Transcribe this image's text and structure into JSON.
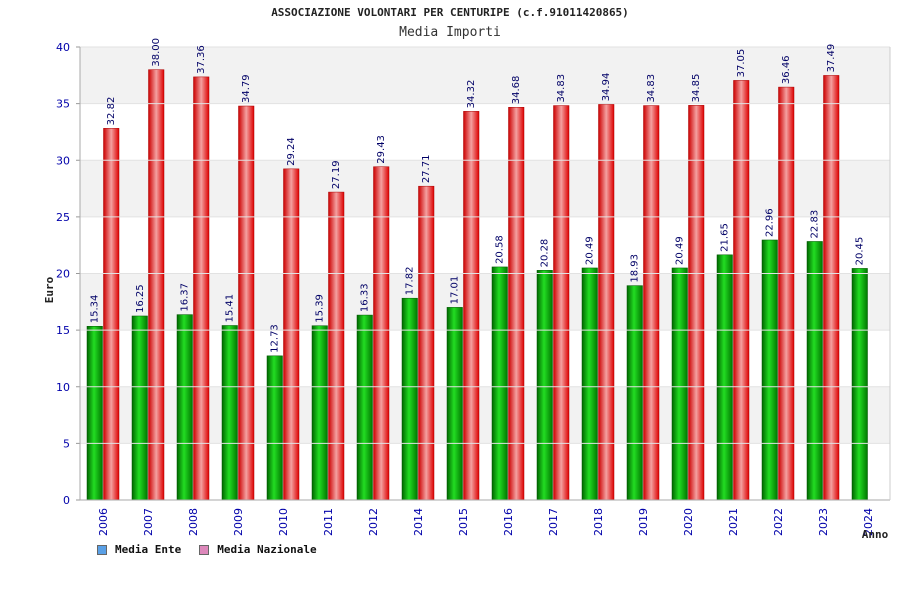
{
  "chart_data": {
    "type": "bar",
    "title": "ASSOCIAZIONE VOLONTARI PER CENTURIPE (c.f.91011420865)",
    "subtitle": "Media Importi",
    "xlabel": "Anno",
    "ylabel": "Euro",
    "ylim": [
      0,
      40
    ],
    "yticks": [
      0,
      5,
      10,
      15,
      20,
      25,
      30,
      35,
      40
    ],
    "grid": true,
    "legend_position": "bottom-left",
    "categories": [
      "2006",
      "2007",
      "2008",
      "2009",
      "2010",
      "2011",
      "2012",
      "2014",
      "2015",
      "2016",
      "2017",
      "2018",
      "2019",
      "2020",
      "2021",
      "2022",
      "2023",
      "2024"
    ],
    "series": [
      {
        "name": "Media Ente",
        "color": "#00aa00",
        "legend_color": "#5aa0e6",
        "values": [
          15.34,
          16.25,
          16.37,
          15.41,
          12.73,
          15.39,
          16.33,
          17.82,
          17.01,
          20.58,
          20.28,
          20.49,
          18.93,
          20.49,
          21.65,
          22.96,
          22.83,
          20.45
        ],
        "labels": [
          "15.34",
          "16.25",
          "16.37",
          "15.41",
          "12.73",
          "15.39",
          "16.33",
          "17.82",
          "17.01",
          "20.58",
          "20.28",
          "20.49",
          "18.93",
          "20.49",
          "21.65",
          "22.96",
          "22.83",
          "20.45"
        ]
      },
      {
        "name": "Media Nazionale",
        "color": "#ee1111",
        "legend_color": "#dd88bb",
        "values": [
          32.82,
          38.0,
          37.36,
          34.79,
          29.24,
          27.19,
          29.43,
          27.71,
          34.32,
          34.68,
          34.83,
          34.94,
          34.83,
          34.85,
          37.05,
          36.46,
          37.49,
          null
        ],
        "labels": [
          "32.82",
          "38.00",
          "37.36",
          "34.79",
          "29.24",
          "27.19",
          "29.43",
          "27.71",
          "34.32",
          "34.68",
          "34.83",
          "34.94",
          "34.83",
          "34.85",
          "37.05",
          "36.46",
          "37.49",
          ""
        ]
      }
    ]
  }
}
